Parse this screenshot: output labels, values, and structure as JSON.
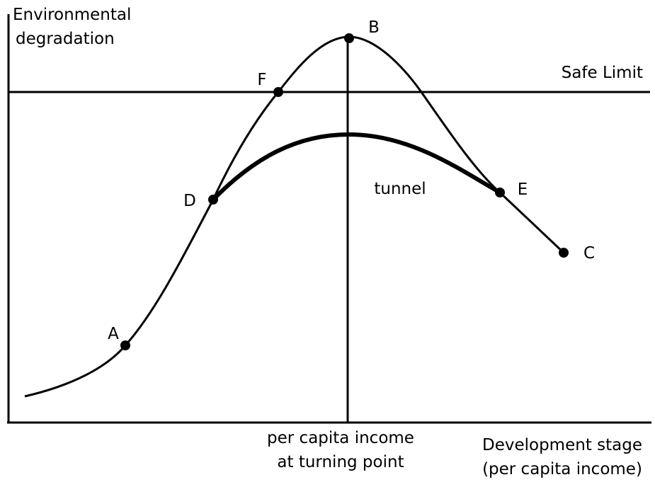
{
  "axis_labels": {
    "y": [
      "Environmental",
      "degradation"
    ],
    "x": [
      "Development stage",
      "(per capita income)"
    ]
  },
  "safe_limit": "Safe Limit",
  "turning_point": [
    "per capita income",
    "at turning point"
  ],
  "tunnel": "tunnel",
  "points": [
    "A",
    "B",
    "C",
    "D",
    "E",
    "F"
  ]
}
